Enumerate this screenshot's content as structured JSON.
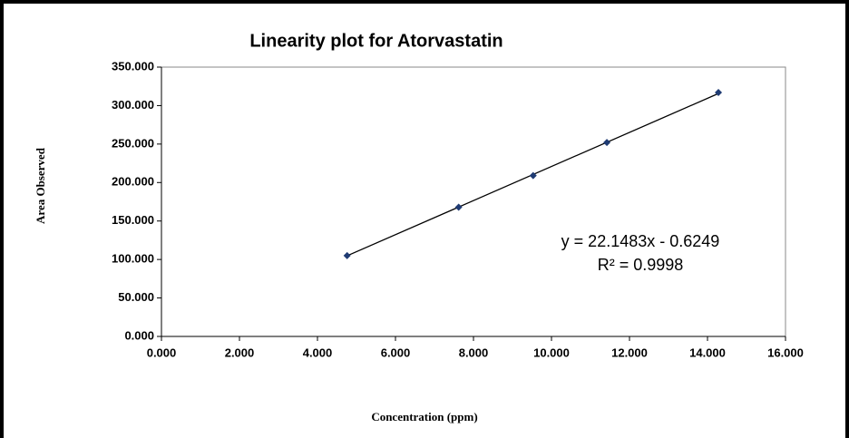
{
  "chart_data": {
    "type": "scatter",
    "title": "Linearity plot for Atorvastatin",
    "x_label": "Concentration  (ppm)",
    "y_label": "Area Observed",
    "series": [
      {
        "name": "Atorvastatin",
        "color": "#1f3b73",
        "x": [
          4.76,
          7.62,
          9.53,
          11.42,
          14.28
        ],
        "values": [
          105,
          168,
          209,
          252,
          317
        ]
      }
    ],
    "trendline": {
      "slope": 22.1483,
      "intercept": -0.6249,
      "color": "#000000",
      "label": "y = 22.1483x - 0.6249",
      "r2_label": "R² = 0.9998"
    },
    "xlim": [
      0,
      16
    ],
    "xticks": [
      {
        "value": 0,
        "label": "0.000"
      },
      {
        "value": 2,
        "label": "2.000"
      },
      {
        "value": 4,
        "label": "4.000"
      },
      {
        "value": 6,
        "label": "6.000"
      },
      {
        "value": 8,
        "label": "8.000"
      },
      {
        "value": 10,
        "label": "10.000"
      },
      {
        "value": 12,
        "label": "12.000"
      },
      {
        "value": 14,
        "label": "14.000"
      },
      {
        "value": 16,
        "label": "16.000"
      }
    ],
    "ylim": [
      0,
      350
    ],
    "yticks": [
      {
        "value": 0,
        "label": "0.000"
      },
      {
        "value": 50,
        "label": "50.000"
      },
      {
        "value": 100,
        "label": "100.000"
      },
      {
        "value": 150,
        "label": "150.000"
      },
      {
        "value": 200,
        "label": "200.000"
      },
      {
        "value": 250,
        "label": "250.000"
      },
      {
        "value": 300,
        "label": "300.000"
      },
      {
        "value": 350,
        "label": "350.000"
      }
    ],
    "grid": false
  }
}
